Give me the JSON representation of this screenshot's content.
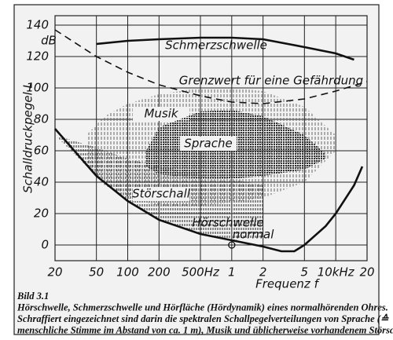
{
  "chart_data": {
    "type": "line",
    "y_label": "Schalldruckpegel L",
    "y_unit": "dB",
    "x_label": "Frequenz f",
    "xscale": "log",
    "grid": true,
    "xlim": [
      20,
      20000
    ],
    "ylim": [
      -10,
      146
    ],
    "xticks": [
      20,
      50,
      100,
      200,
      {
        "value": 500,
        "label": "500Hz"
      },
      {
        "value": 1000,
        "label": "1"
      },
      {
        "value": 2000,
        "label": "2"
      },
      {
        "value": 5000,
        "label": "5"
      },
      {
        "value": 10000,
        "label": "10kHz"
      },
      {
        "value": 20000,
        "label": "20"
      }
    ],
    "yticks": [
      0,
      20,
      40,
      60,
      80,
      100,
      120,
      140
    ],
    "series": [
      {
        "name": "Schmerzschwelle",
        "type": "line",
        "color": "#111",
        "dashed": false,
        "x": [
          50,
          100,
          200,
          500,
          1000,
          2000,
          5000,
          10000,
          15000
        ],
        "values": [
          128,
          130,
          131,
          132,
          132,
          131,
          126,
          122,
          118
        ]
      },
      {
        "name": "Grenzwert für eine Gefährdung",
        "type": "line",
        "color": "#111",
        "dashed": true,
        "x": [
          20,
          50,
          100,
          200,
          500,
          1000,
          2000,
          5000,
          10000,
          20000
        ],
        "values": [
          137,
          120,
          110,
          102,
          95,
          91,
          90,
          93,
          98,
          104
        ]
      },
      {
        "name": "Hörschwelle",
        "type": "line",
        "color": "#111",
        "dashed": false,
        "x": [
          20,
          50,
          100,
          200,
          500,
          1000,
          2000,
          3000,
          4000,
          5000,
          8000,
          10000,
          15000,
          18000
        ],
        "values": [
          74,
          44,
          28,
          16,
          7,
          3,
          -1,
          -4,
          -4,
          0,
          12,
          20,
          38,
          50
        ]
      }
    ],
    "areas": [
      {
        "name": "Musik",
        "type": "area",
        "color": "#555",
        "x": [
          40,
          60,
          100,
          200,
          500,
          1000,
          2000,
          5000,
          10000
        ],
        "upper": [
          70,
          82,
          90,
          96,
          100,
          100,
          98,
          88,
          70
        ],
        "lower": [
          50,
          38,
          30,
          25,
          25,
          27,
          30,
          40,
          60
        ]
      },
      {
        "name": "Sprache",
        "type": "area",
        "color": "#333",
        "x": [
          150,
          200,
          500,
          1000,
          2000,
          5000,
          8000
        ],
        "upper": [
          60,
          75,
          85,
          86,
          82,
          70,
          58
        ],
        "lower": [
          50,
          45,
          42,
          42,
          44,
          48,
          55
        ]
      },
      {
        "name": "Störschall",
        "type": "area",
        "color": "#444",
        "x": [
          20,
          50,
          100,
          200,
          500,
          1000,
          2000
        ],
        "upper": [
          70,
          62,
          55,
          50,
          45,
          42,
          38
        ],
        "lower": [
          70,
          44,
          28,
          16,
          7,
          3,
          5
        ]
      }
    ],
    "annotations": [
      "normal"
    ],
    "markers": [
      {
        "x": 1000,
        "y": 0
      }
    ],
    "caption": [
      "Bild 3.1",
      "Hörschwelle, Schmerzschwelle und Hörfläche (Hördynamik) eines normalhörenden Ohres.",
      "Schraffiert eingezeichnet sind darin die spektralen Schallpegelverteilungen von Sprache (≙",
      "menschliche Stimme im Abstand von ca. 1 m), Musik und üblicherweise vorhandenem Störschall"
    ]
  }
}
